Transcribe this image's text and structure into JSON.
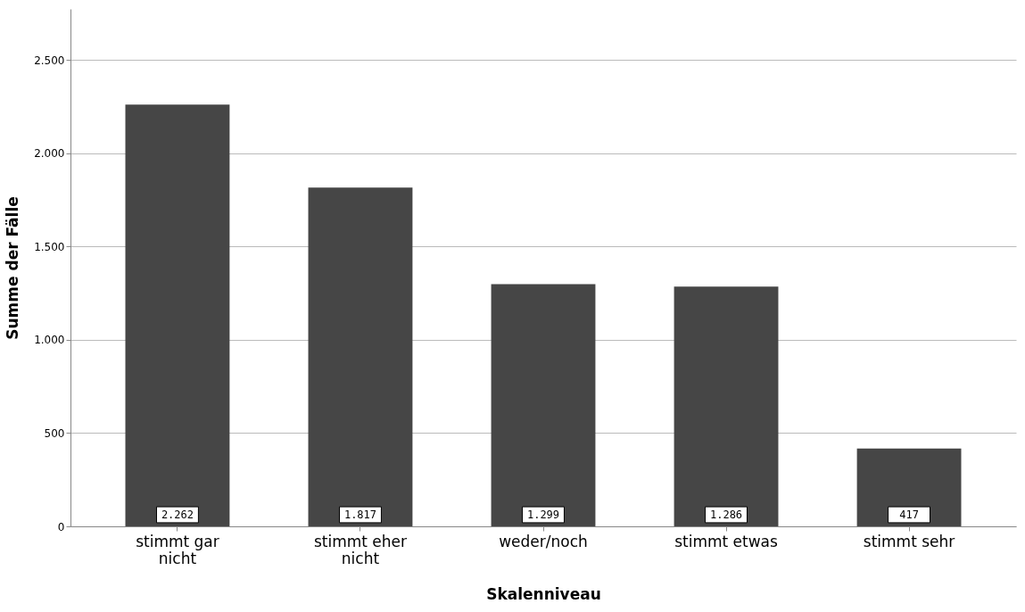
{
  "chart_data": {
    "type": "bar",
    "xlabel": "Skalenniveau",
    "ylabel": "Summe der Fälle",
    "categories": [
      "stimmt gar nicht",
      "stimmt eher nicht",
      "weder/noch",
      "stimmt etwas",
      "stimmt sehr"
    ],
    "values": [
      2262,
      1817,
      1299,
      1286,
      417
    ],
    "value_labels": [
      "2.262",
      "1.817",
      "1.299",
      "1.286",
      "417"
    ],
    "color": "#464646",
    "ylim": [
      0,
      2775
    ],
    "yticks": [
      0,
      {
        "value": 500,
        "label": "500"
      },
      {
        "value": 1000,
        "label": "1.000"
      },
      {
        "value": 1500,
        "label": "1.500"
      },
      {
        "value": 2000,
        "label": "2.000"
      },
      {
        "value": 2500,
        "label": "2.500"
      }
    ],
    "grid": "y"
  }
}
